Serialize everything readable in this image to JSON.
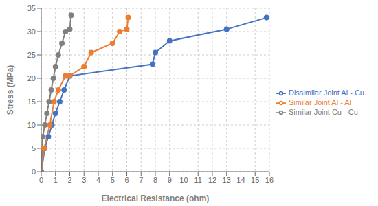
{
  "chart_data": {
    "type": "line",
    "x_label": "Electrical Resistance (ohm)",
    "y_label": "Stress (MPa)",
    "xlim": [
      0,
      16
    ],
    "ylim": [
      0,
      35
    ],
    "xticks": [
      0,
      1,
      2,
      3,
      4,
      5,
      6,
      7,
      8,
      9,
      10,
      11,
      12,
      13,
      14,
      15,
      16
    ],
    "yticks": [
      0,
      5,
      10,
      15,
      20,
      25,
      30,
      35
    ],
    "series": [
      {
        "name": "Dissimilar Joint Al - Cu",
        "color": "#4472C4",
        "x": [
          0,
          0.25,
          0.5,
          0.75,
          1.0,
          1.3,
          1.6,
          2.0,
          7.8,
          8.0,
          9.0,
          13.0,
          15.8
        ],
        "values": [
          0,
          5,
          7.5,
          10,
          12.5,
          15,
          17.5,
          20.5,
          23,
          25.5,
          28,
          30.5,
          33
        ]
      },
      {
        "name": "Similar Joint Al - Al",
        "color": "#ED7D31",
        "x": [
          0,
          0.2,
          0.6,
          0.9,
          1.2,
          1.7,
          2.0,
          3.0,
          3.5,
          5.0,
          5.5,
          6.0,
          6.1
        ],
        "values": [
          0,
          5,
          10,
          15,
          17.5,
          20.5,
          20.5,
          22.5,
          25.5,
          27.5,
          30,
          30.5,
          33
        ]
      },
      {
        "name": "Similar Joint Cu - Cu",
        "color": "#808080",
        "x": [
          0,
          0.1,
          0.25,
          0.4,
          0.55,
          0.7,
          0.85,
          1.0,
          1.2,
          1.45,
          1.7,
          2.0,
          2.1
        ],
        "values": [
          0,
          7.5,
          10,
          12.5,
          15,
          17.5,
          20,
          22.5,
          25,
          27.5,
          30,
          30.5,
          33.5
        ]
      }
    ],
    "legend": "center right",
    "grid": true,
    "marker": "circle"
  }
}
